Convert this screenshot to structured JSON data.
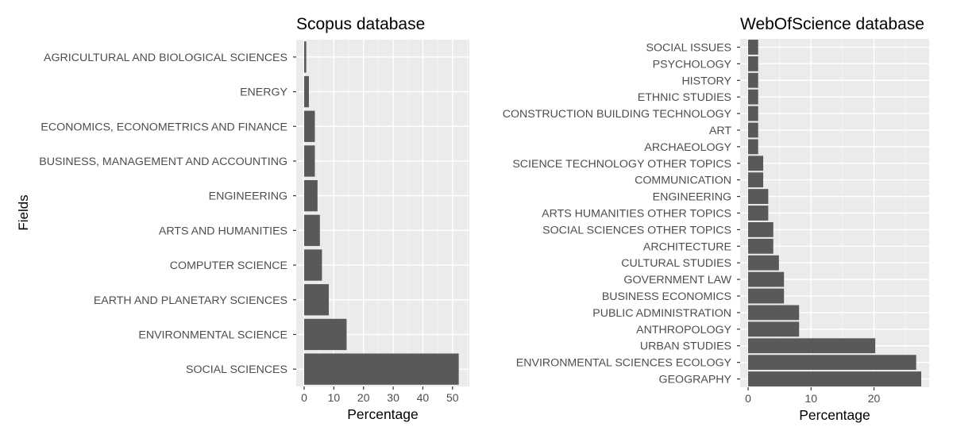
{
  "y_axis_label": "Fields",
  "chart_data": [
    {
      "type": "bar",
      "orientation": "horizontal",
      "title": "Scopus database",
      "xlabel": "Percentage",
      "ylabel": "Fields",
      "xlim": [
        0,
        53
      ],
      "xticks": [
        0,
        10,
        20,
        30,
        40,
        50
      ],
      "grid": true,
      "bar_color": "#595959",
      "panel_color": "#ebebeb",
      "categories": [
        "AGRICULTURAL AND BIOLOGICAL SCIENCES",
        "ENERGY",
        "ECONOMICS, ECONOMETRICS AND FINANCE",
        "BUSINESS, MANAGEMENT AND ACCOUNTING",
        "ENGINEERING",
        "ARTS AND HUMANITIES",
        "COMPUTER SCIENCE",
        "EARTH AND PLANETARY SCIENCES",
        "ENVIRONMENTAL SCIENCE",
        "SOCIAL SCIENCES"
      ],
      "values": [
        0.7,
        1.6,
        3.6,
        3.6,
        4.5,
        5.3,
        6.0,
        8.3,
        14.3,
        52.1
      ]
    },
    {
      "type": "bar",
      "orientation": "horizontal",
      "title": "WebOfScience database",
      "xlabel": "Percentage",
      "ylabel": "",
      "xlim": [
        0,
        27.5
      ],
      "xticks": [
        0,
        10,
        20
      ],
      "grid": true,
      "bar_color": "#595959",
      "panel_color": "#ebebeb",
      "categories": [
        "SOCIAL ISSUES",
        "PSYCHOLOGY",
        "HISTORY",
        "ETHNIC STUDIES",
        "CONSTRUCTION BUILDING TECHNOLOGY",
        "ART",
        "ARCHAEOLOGY",
        "SCIENCE TECHNOLOGY OTHER TOPICS",
        "COMMUNICATION",
        "ENGINEERING",
        "ARTS HUMANITIES OTHER TOPICS",
        "SOCIAL SCIENCES OTHER TOPICS",
        "ARCHITECTURE",
        "CULTURAL STUDIES",
        "GOVERNMENT LAW",
        "BUSINESS ECONOMICS",
        "PUBLIC ADMINISTRATION",
        "ANTHROPOLOGY",
        "URBAN STUDIES",
        "ENVIRONMENTAL SCIENCES ECOLOGY",
        "GEOGRAPHY"
      ],
      "values": [
        1.6,
        1.6,
        1.6,
        1.6,
        1.6,
        1.6,
        1.6,
        2.4,
        2.4,
        3.2,
        3.2,
        4.0,
        4.0,
        4.9,
        5.7,
        5.7,
        8.1,
        8.1,
        20.2,
        26.7,
        27.5
      ]
    }
  ]
}
